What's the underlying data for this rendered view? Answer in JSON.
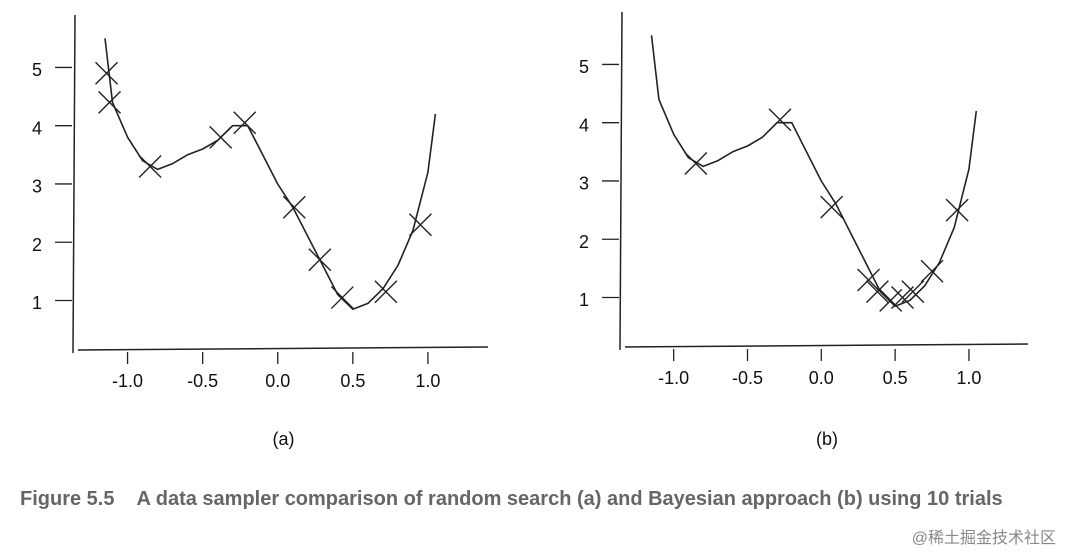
{
  "chart_data": [
    {
      "type": "line",
      "caption": "(a)",
      "xlim": [
        -1.35,
        1.4
      ],
      "ylim": [
        0.15,
        5.9
      ],
      "xticks": [
        {
          "value": -1,
          "label": "-1.0"
        },
        {
          "value": -0.5,
          "label": "-0.5"
        },
        {
          "value": 0,
          "label": "0.0"
        },
        0.5,
        {
          "value": 1,
          "label": "1.0"
        }
      ],
      "yticks": [
        1,
        2,
        3,
        4,
        5
      ],
      "series": [
        {
          "type": "line",
          "color": "#222",
          "x": [
            -1.15,
            -1.1,
            -1.0,
            -0.9,
            -0.8,
            -0.7,
            -0.6,
            -0.5,
            -0.4,
            -0.3,
            -0.2,
            -0.1,
            0.0,
            0.1,
            0.2,
            0.3,
            0.4,
            0.5,
            0.6,
            0.7,
            0.8,
            0.9,
            1.0,
            1.05
          ],
          "values": [
            5.5,
            4.4,
            3.8,
            3.4,
            3.25,
            3.35,
            3.5,
            3.6,
            3.75,
            4.0,
            4.0,
            3.5,
            3.0,
            2.6,
            2.1,
            1.6,
            1.1,
            0.85,
            0.95,
            1.2,
            1.6,
            2.2,
            3.2,
            4.2
          ]
        },
        {
          "type": "scatter",
          "color": "#222",
          "x": [
            -1.14,
            -1.12,
            -0.85,
            -0.38,
            -0.22,
            0.11,
            0.28,
            0.43,
            0.72,
            0.95
          ],
          "values": [
            4.9,
            4.4,
            3.3,
            3.8,
            4.05,
            2.6,
            1.7,
            1.05,
            1.15,
            2.3
          ]
        }
      ]
    },
    {
      "type": "line",
      "caption": "(b)",
      "xlim": [
        -1.35,
        1.4
      ],
      "ylim": [
        0.15,
        5.9
      ],
      "xticks": [
        {
          "value": -1,
          "label": "-1.0"
        },
        {
          "value": -0.5,
          "label": "-0.5"
        },
        {
          "value": 0,
          "label": "0.0"
        },
        0.5,
        {
          "value": 1,
          "label": "1.0"
        }
      ],
      "yticks": [
        1,
        2,
        3,
        4,
        5
      ],
      "series": [
        {
          "type": "line",
          "color": "#222",
          "x": [
            -1.15,
            -1.1,
            -1.0,
            -0.9,
            -0.8,
            -0.7,
            -0.6,
            -0.5,
            -0.4,
            -0.3,
            -0.2,
            -0.1,
            0.0,
            0.1,
            0.2,
            0.3,
            0.4,
            0.5,
            0.6,
            0.7,
            0.8,
            0.9,
            1.0,
            1.05
          ],
          "values": [
            5.5,
            4.4,
            3.8,
            3.4,
            3.25,
            3.35,
            3.5,
            3.6,
            3.75,
            4.0,
            4.0,
            3.5,
            3.0,
            2.6,
            2.1,
            1.6,
            1.1,
            0.85,
            0.95,
            1.2,
            1.6,
            2.2,
            3.2,
            4.2
          ]
        },
        {
          "type": "scatter",
          "color": "#222",
          "x": [
            -0.85,
            -0.28,
            0.07,
            0.32,
            0.38,
            0.47,
            0.55,
            0.62,
            0.75,
            0.92
          ],
          "values": [
            3.3,
            4.05,
            2.55,
            1.3,
            1.1,
            0.95,
            1.0,
            1.1,
            1.45,
            2.5
          ]
        }
      ]
    }
  ],
  "figure_caption": {
    "label": "Figure 5.5",
    "text": "A data sampler comparison of random search (a) and Bayesian approach (b) using 10 trials"
  },
  "watermark": "@稀土掘金技术社区"
}
